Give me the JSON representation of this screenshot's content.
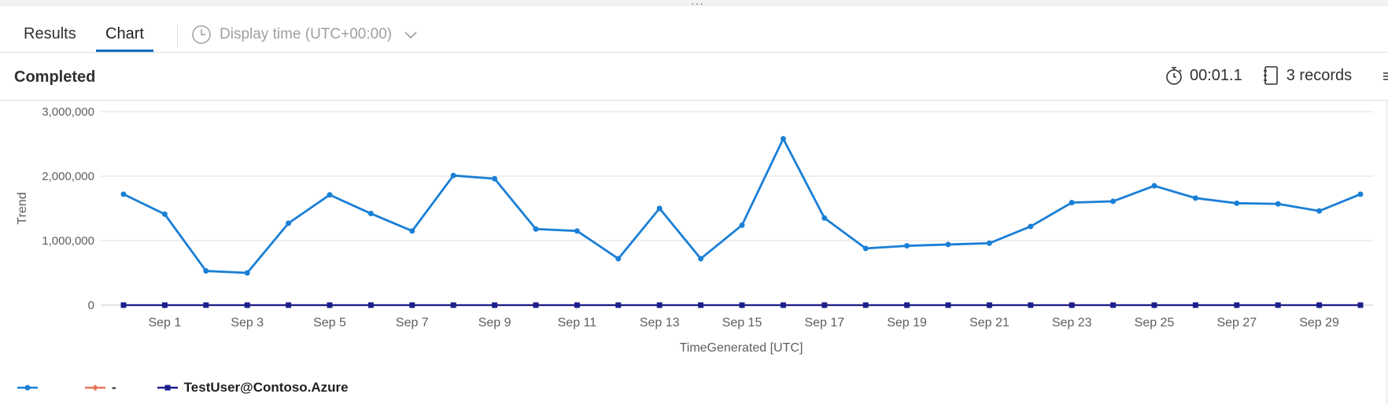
{
  "tabs": {
    "results_label": "Results",
    "chart_label": "Chart",
    "active": "Chart"
  },
  "display_time": {
    "label": "Display time (UTC+00:00)"
  },
  "status": {
    "text": "Completed",
    "duration": "00:01.1",
    "records": "3 records"
  },
  "colors": {
    "accent": "#0f6cbd",
    "series_trend": "#1a7fd6",
    "series_dash": "#e8765a",
    "series_user": "#1a1f8c",
    "grid": "#e1dfdd"
  },
  "chart_data": {
    "type": "line",
    "ylabel": "Trend",
    "xlabel": "TimeGenerated [UTC]",
    "ylim": [
      0,
      3000000
    ],
    "yticks": [
      0,
      1000000,
      2000000,
      3000000
    ],
    "ytick_labels": [
      "0",
      "1,000,000",
      "2,000,000",
      "3,000,000"
    ],
    "x": [
      "Aug 31",
      "Sep 1",
      "Sep 2",
      "Sep 3",
      "Sep 4",
      "Sep 5",
      "Sep 6",
      "Sep 7",
      "Sep 8",
      "Sep 9",
      "Sep 10",
      "Sep 11",
      "Sep 12",
      "Sep 13",
      "Sep 14",
      "Sep 15",
      "Sep 16",
      "Sep 17",
      "Sep 18",
      "Sep 19",
      "Sep 20",
      "Sep 21",
      "Sep 22",
      "Sep 23",
      "Sep 24",
      "Sep 25",
      "Sep 26",
      "Sep 27",
      "Sep 28",
      "Sep 29",
      "Sep 30"
    ],
    "xtick_labels": [
      "Sep 1",
      "Sep 3",
      "Sep 5",
      "Sep 7",
      "Sep 9",
      "Sep 11",
      "Sep 13",
      "Sep 15",
      "Sep 17",
      "Sep 19",
      "Sep 21",
      "Sep 23",
      "Sep 25",
      "Sep 27",
      "Sep 29"
    ],
    "legend_position": "bottom-left",
    "grid": true,
    "series": [
      {
        "name": "",
        "color": "#1a7fd6",
        "marker": "circle",
        "values": [
          1720000,
          1410000,
          530000,
          500000,
          1270000,
          1710000,
          1420000,
          1150000,
          2010000,
          1960000,
          1180000,
          1150000,
          720000,
          1500000,
          720000,
          1240000,
          2580000,
          1350000,
          880000,
          920000,
          940000,
          960000,
          1220000,
          1590000,
          1610000,
          1850000,
          1660000,
          1580000,
          1570000,
          1460000,
          1720000
        ]
      },
      {
        "name": "-",
        "color": "#e8765a",
        "marker": "diamond",
        "values": [
          0,
          0,
          0,
          0,
          0,
          0,
          0,
          0,
          0,
          0,
          0,
          0,
          0,
          0,
          0,
          0,
          0,
          0,
          0,
          0,
          0,
          0,
          0,
          0,
          0,
          0,
          0,
          0,
          0,
          0,
          0
        ]
      },
      {
        "name": "TestUser@Contoso.Azure",
        "color": "#1a1f8c",
        "marker": "square",
        "values": [
          0,
          0,
          0,
          0,
          0,
          0,
          0,
          0,
          0,
          0,
          0,
          0,
          0,
          0,
          0,
          0,
          0,
          0,
          0,
          0,
          0,
          0,
          0,
          0,
          0,
          0,
          0,
          0,
          0,
          0,
          0
        ]
      }
    ]
  }
}
